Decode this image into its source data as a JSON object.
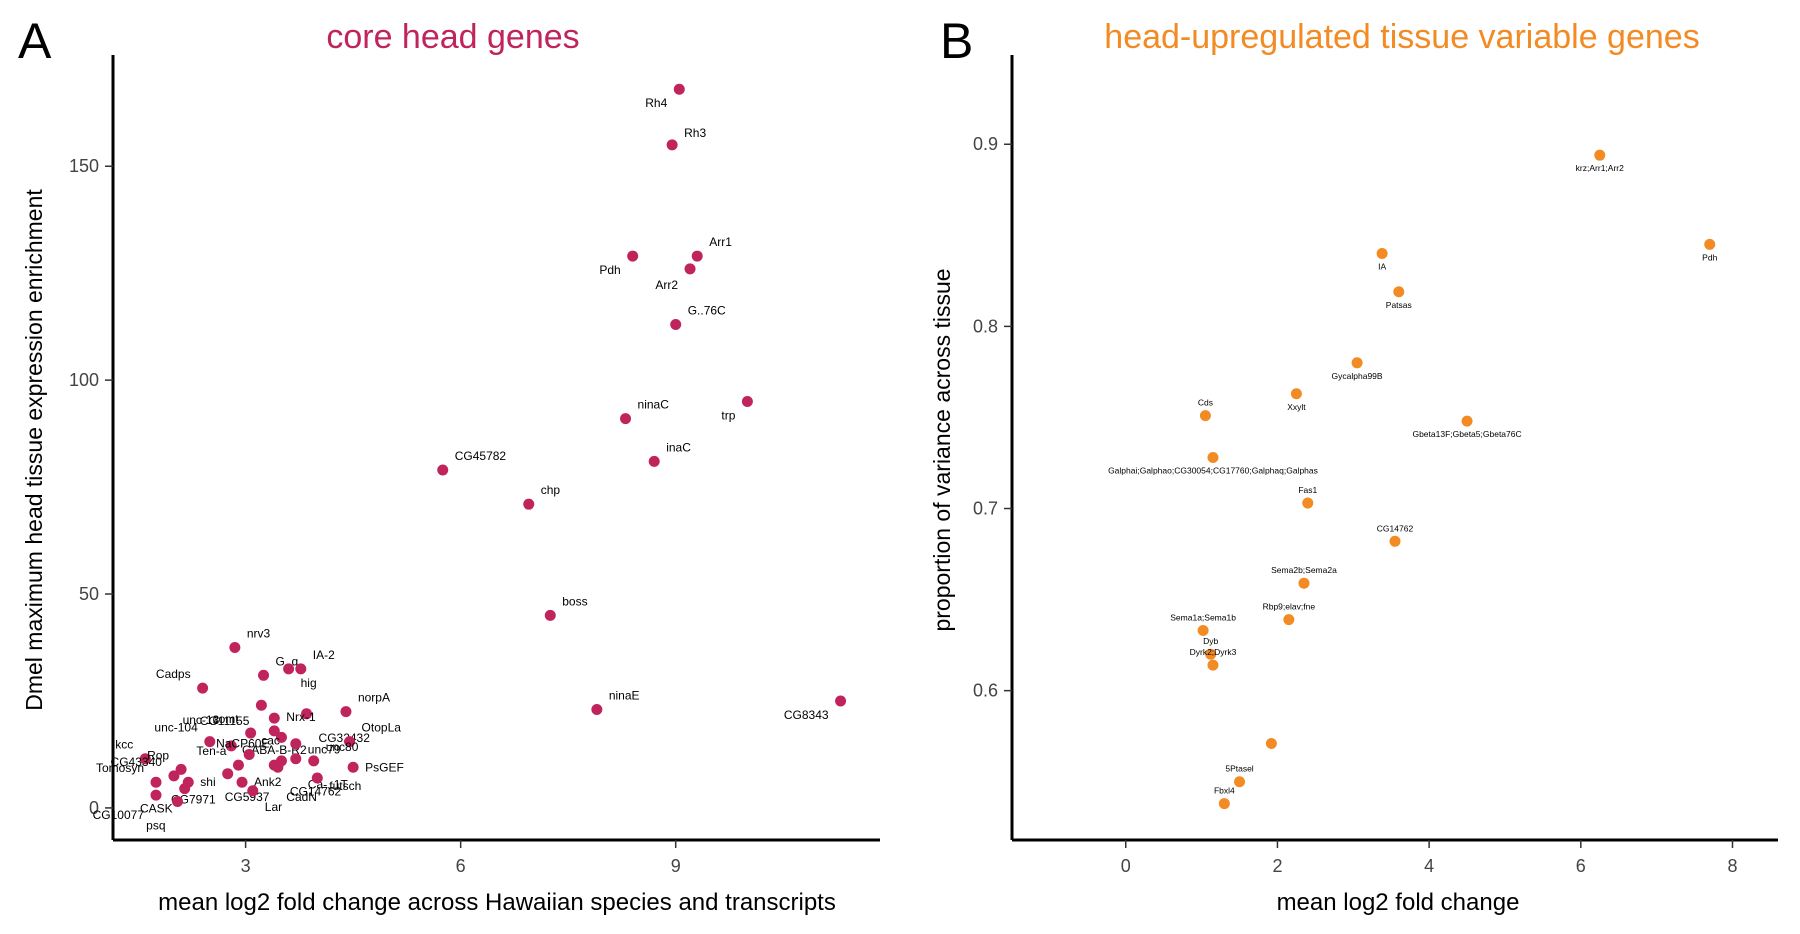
{
  "panels": [
    {
      "letter": "A"
    },
    {
      "letter": "B"
    }
  ],
  "colors": {
    "panelA": "#c0245c",
    "panelB": "#f28b24",
    "axis": "#000000",
    "tick_text": "#444444"
  },
  "chart_data": [
    {
      "type": "scatter",
      "title": "core head genes",
      "xlabel": "mean log2 fold change across Hawaiian species and transcripts",
      "ylabel": "Dmel maximum head tissue expression enrichment",
      "xlim": [
        1.15,
        11.85
      ],
      "ylim": [
        -7.5,
        176
      ],
      "xticks": [
        3,
        6,
        9
      ],
      "yticks": [
        0,
        50,
        100,
        150
      ],
      "grid": false,
      "legend": "none",
      "points": [
        {
          "x": 9.05,
          "y": 168,
          "label": "Rh4"
        },
        {
          "x": 8.95,
          "y": 155,
          "label": "Rh3"
        },
        {
          "x": 8.4,
          "y": 129,
          "label": "Pdh"
        },
        {
          "x": 9.3,
          "y": 129,
          "label": "Arr1"
        },
        {
          "x": 9.2,
          "y": 126,
          "label": "Arr2"
        },
        {
          "x": 9.0,
          "y": 113,
          "label": "G..76C"
        },
        {
          "x": 10.0,
          "y": 95,
          "label": "trp"
        },
        {
          "x": 8.3,
          "y": 91,
          "label": "ninaC"
        },
        {
          "x": 8.7,
          "y": 81,
          "label": "inaC"
        },
        {
          "x": 5.75,
          "y": 79,
          "label": "CG45782"
        },
        {
          "x": 6.95,
          "y": 71,
          "label": "chp"
        },
        {
          "x": 7.25,
          "y": 45,
          "label": "boss"
        },
        {
          "x": 11.3,
          "y": 25,
          "label": "CG8343"
        },
        {
          "x": 7.9,
          "y": 23,
          "label": "ninaE"
        },
        {
          "x": 2.85,
          "y": 37.5,
          "label": "nrv3"
        },
        {
          "x": 3.25,
          "y": 31,
          "label": "G..q"
        },
        {
          "x": 3.6,
          "y": 32.5,
          "label": "hig"
        },
        {
          "x": 3.77,
          "y": 32.5,
          "label": "IA-2"
        },
        {
          "x": 2.4,
          "y": 28,
          "label": "Cadps"
        },
        {
          "x": 3.22,
          "y": 24,
          "label": "CG11155"
        },
        {
          "x": 3.4,
          "y": 21,
          "label": "GABA-B-R2"
        },
        {
          "x": 3.85,
          "y": 22,
          "label": "CG32432"
        },
        {
          "x": 4.4,
          "y": 22.5,
          "label": "norpA"
        },
        {
          "x": 3.07,
          "y": 17.5,
          "label": "comt"
        },
        {
          "x": 3.4,
          "y": 18,
          "label": "Nrx-1"
        },
        {
          "x": 2.5,
          "y": 15.5,
          "label": "unc-104"
        },
        {
          "x": 2.8,
          "y": 14.5,
          "label": "unc-13"
        },
        {
          "x": 3.5,
          "y": 16.5,
          "label": "NaCP60E"
        },
        {
          "x": 3.7,
          "y": 15,
          "label": "unc79"
        },
        {
          "x": 4.45,
          "y": 15.5,
          "label": "OtopLa"
        },
        {
          "x": 3.05,
          "y": 12.5,
          "label": "cac"
        },
        {
          "x": 3.5,
          "y": 11,
          "label": "CG5937"
        },
        {
          "x": 3.4,
          "y": 10,
          "label": "CadN"
        },
        {
          "x": 3.7,
          "y": 11.5,
          "label": "Ca-..1T"
        },
        {
          "x": 3.95,
          "y": 11,
          "label": "unc80"
        },
        {
          "x": 4.5,
          "y": 9.5,
          "label": "PsGEF"
        },
        {
          "x": 1.6,
          "y": 11.5,
          "label": "kcc"
        },
        {
          "x": 2.1,
          "y": 9,
          "label": "Rop"
        },
        {
          "x": 2.9,
          "y": 10,
          "label": "Ten-a"
        },
        {
          "x": 2.95,
          "y": 6,
          "label": "Ank2"
        },
        {
          "x": 3.45,
          "y": 9.5,
          "label": "CG14762"
        },
        {
          "x": 4.0,
          "y": 7,
          "label": "futsch"
        },
        {
          "x": 2.0,
          "y": 7.5,
          "label": "CG43340"
        },
        {
          "x": 2.2,
          "y": 6,
          "label": "shi"
        },
        {
          "x": 2.75,
          "y": 8,
          "label": "CG7971"
        },
        {
          "x": 3.1,
          "y": 4,
          "label": "Lar"
        },
        {
          "x": 1.75,
          "y": 6,
          "label": "Tomosyn"
        },
        {
          "x": 2.15,
          "y": 4.5,
          "label": "CASK"
        },
        {
          "x": 1.75,
          "y": 3,
          "label": "CG10077"
        },
        {
          "x": 2.05,
          "y": 1.5,
          "label": "psq"
        }
      ]
    },
    {
      "type": "scatter",
      "title": "head-upregulated tissue variable genes",
      "xlabel": "mean log2 fold change",
      "ylabel": "proportion of variance across tissue",
      "xlim": [
        -1.5,
        8.6
      ],
      "ylim": [
        0.518,
        0.949
      ],
      "xticks": [
        0,
        2,
        4,
        6,
        8
      ],
      "yticks": [
        0.6,
        0.7,
        0.8,
        0.9
      ],
      "grid": false,
      "legend": "none",
      "points": [
        {
          "x": 6.25,
          "y": 0.894,
          "label": "krz;Arr1;Arr2"
        },
        {
          "x": 7.7,
          "y": 0.845,
          "label": "Pdh"
        },
        {
          "x": 3.38,
          "y": 0.84,
          "label": "IA"
        },
        {
          "x": 3.6,
          "y": 0.819,
          "label": "Patsas"
        },
        {
          "x": 3.05,
          "y": 0.78,
          "label": "Gycalpha99B"
        },
        {
          "x": 2.25,
          "y": 0.763,
          "label": "Xxylt"
        },
        {
          "x": 1.05,
          "y": 0.751,
          "label": "Cds"
        },
        {
          "x": 4.5,
          "y": 0.748,
          "label": "Gbeta13F;Gbeta5;Gbeta76C"
        },
        {
          "x": 1.15,
          "y": 0.728,
          "label": "Galphai;Galphao;CG30054;CG17760;Galphaq;Galphas"
        },
        {
          "x": 2.4,
          "y": 0.703,
          "label": "Fas1"
        },
        {
          "x": 3.55,
          "y": 0.682,
          "label": "CG14762"
        },
        {
          "x": 2.35,
          "y": 0.659,
          "label": "Sema2b;Sema2a"
        },
        {
          "x": 2.15,
          "y": 0.639,
          "label": "Rbp9;elav;fne"
        },
        {
          "x": 1.02,
          "y": 0.633,
          "label": "Sema1a;Sema1b"
        },
        {
          "x": 1.12,
          "y": 0.62,
          "label": "Dyb"
        },
        {
          "x": 1.15,
          "y": 0.614,
          "label": "Dyrk2;Dyrk3"
        },
        {
          "x": 1.92,
          "y": 0.571,
          "label": ""
        },
        {
          "x": 1.5,
          "y": 0.55,
          "label": "5Ptasel"
        },
        {
          "x": 1.3,
          "y": 0.538,
          "label": "Fbxl4"
        }
      ]
    }
  ]
}
